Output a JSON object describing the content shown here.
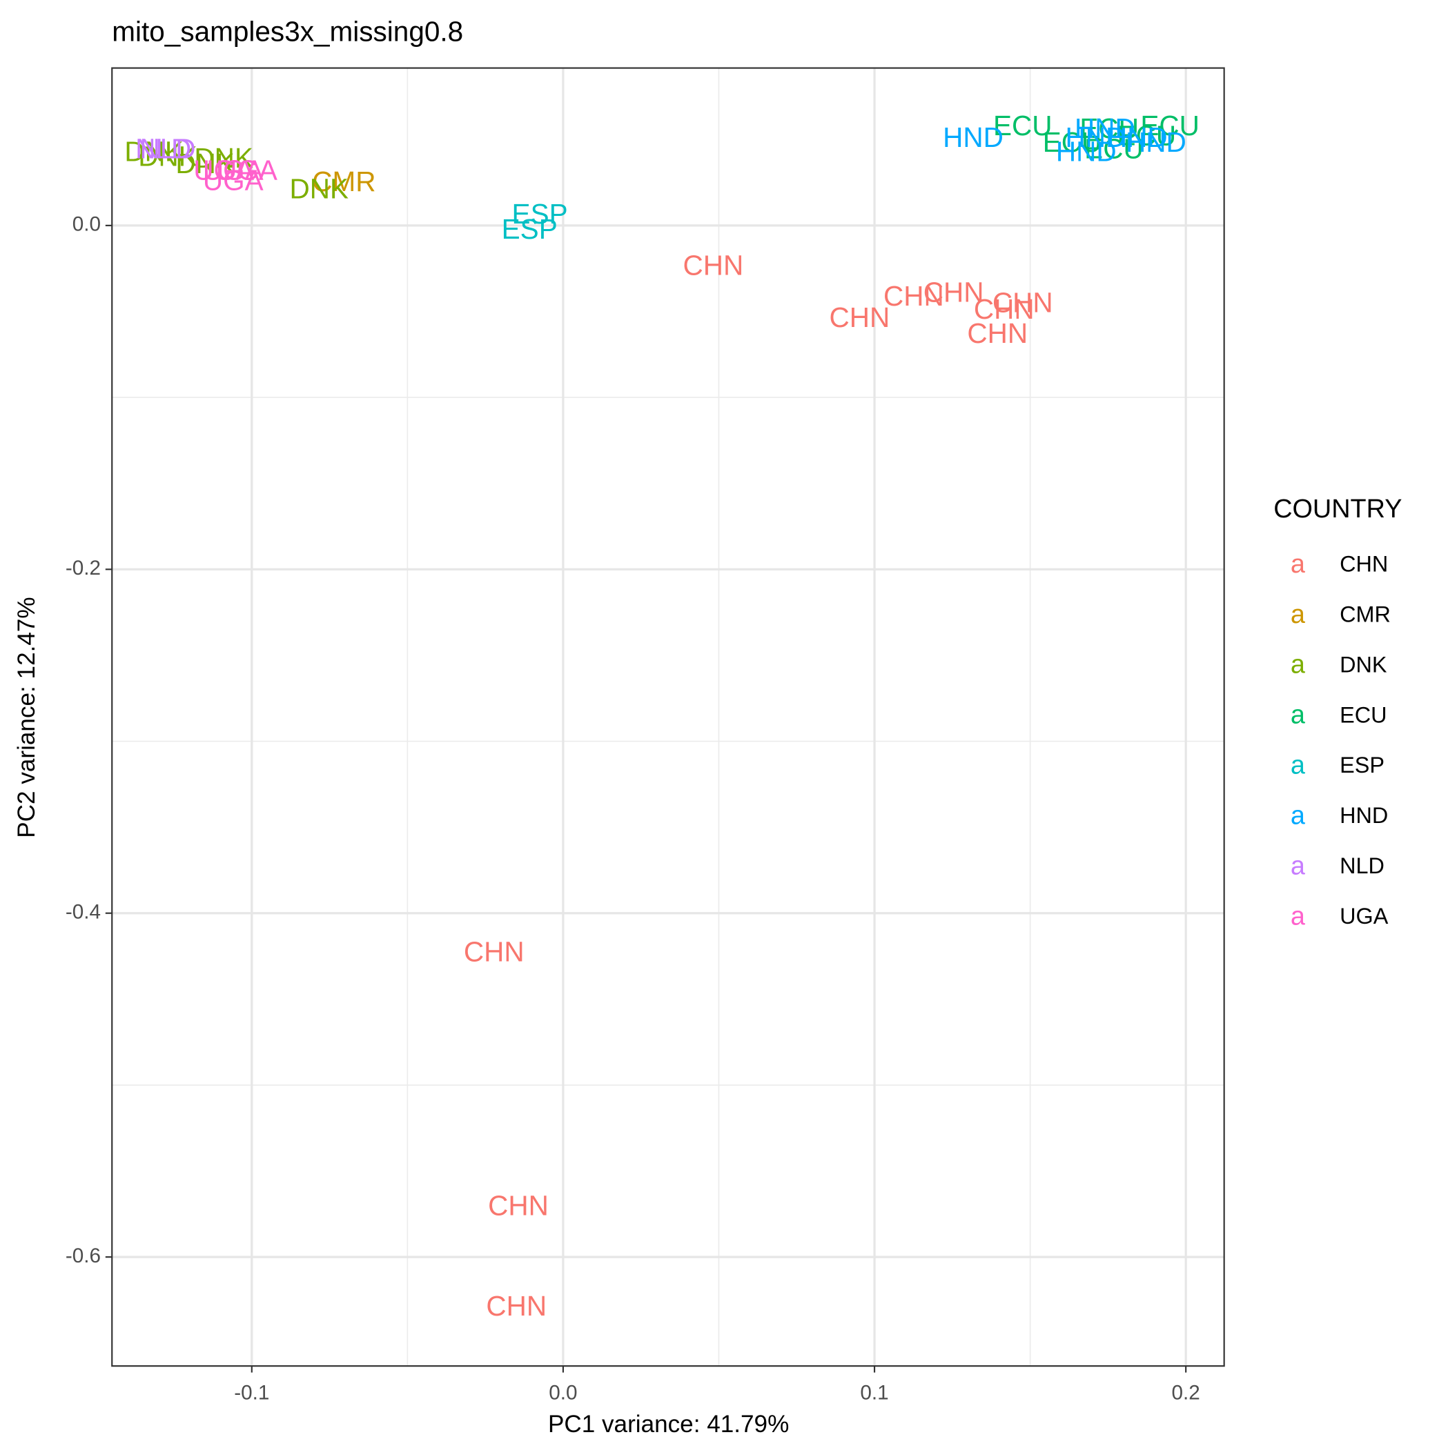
{
  "chart_data": {
    "type": "text-scatter",
    "title": "mito_samples3x_missing0.8",
    "x_label": "PC1 variance: 41.79%",
    "y_label": "PC2 variance: 12.47%",
    "legend_title": "COUNTRY",
    "legend_key": "a",
    "legend_position": "right",
    "grid": true,
    "xlim": [
      -0.1449,
      0.2123
    ],
    "ylim": [
      -0.6634,
      0.0916
    ],
    "xticks": [
      -0.1,
      {
        "value": 0,
        "label": "0.0"
      },
      0.1,
      0.2
    ],
    "yticks": [
      {
        "value": 0,
        "label": "0.0"
      },
      -0.2,
      -0.4,
      -0.6
    ],
    "x_minor_grid": [
      -0.05,
      0.05,
      0.15
    ],
    "y_minor_grid": [
      -0.1,
      -0.3,
      -0.5
    ],
    "series": [
      {
        "name": "CHN",
        "color": "#F8766D",
        "x": [
          0.0482,
          0.0952,
          0.1126,
          0.1254,
          0.1416,
          0.1476,
          0.1395,
          -0.0222,
          -0.0144,
          -0.015
        ],
        "y": [
          -0.0244,
          -0.0547,
          -0.0423,
          -0.0401,
          -0.0499,
          -0.0461,
          -0.064,
          -0.4238,
          -0.5713,
          -0.6298
        ]
      },
      {
        "name": "CMR",
        "color": "#CD9600",
        "x": [
          -0.0704
        ],
        "y": [
          0.0244
        ]
      },
      {
        "name": "DNK",
        "color": "#7CAE00",
        "x": [
          -0.0784,
          -0.1314,
          -0.127,
          -0.115,
          -0.109
        ],
        "y": [
          0.0201,
          0.0417,
          0.039,
          0.0347,
          0.038
        ]
      },
      {
        "name": "ECU",
        "color": "#00BE67",
        "x": [
          0.1476,
          0.1949,
          0.1635,
          0.1754,
          0.1874,
          0.1769
        ],
        "y": [
          0.0569,
          0.0569,
          0.0472,
          0.0553,
          0.051,
          0.0434
        ]
      },
      {
        "name": "ESP",
        "color": "#00BFC4",
        "x": [
          -0.0075,
          -0.0108
        ],
        "y": [
          0.0054,
          -0.0033
        ]
      },
      {
        "name": "HND",
        "color": "#00A9FF",
        "x": [
          0.1317,
          0.168,
          0.174,
          0.1844,
          0.1904,
          0.171
        ],
        "y": [
          0.0499,
          0.0417,
          0.0553,
          0.0499,
          0.0472,
          0.0499
        ]
      },
      {
        "name": "NLD",
        "color": "#C77CFF",
        "x": [
          -0.1284,
          -0.127
        ],
        "y": [
          0.0434,
          0.0434
        ]
      },
      {
        "name": "UGA",
        "color": "#FF61CC",
        "x": [
          -0.106,
          -0.106,
          -0.1015,
          -0.109
        ],
        "y": [
          0.0249,
          0.0309,
          0.0309,
          0.0309
        ]
      }
    ]
  }
}
